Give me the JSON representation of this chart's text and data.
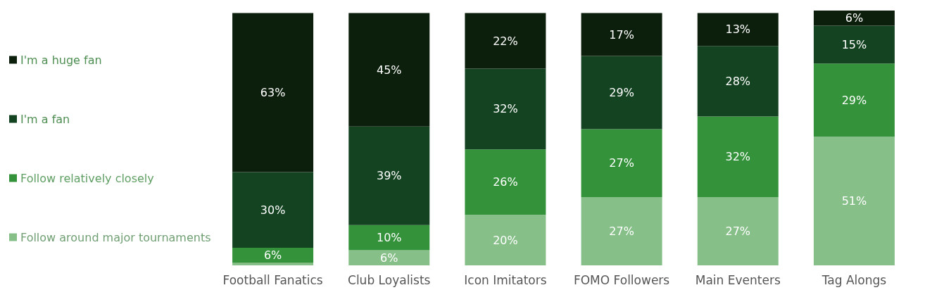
{
  "chart_data": {
    "type": "bar",
    "stacked": true,
    "legend": "left",
    "categories": [
      "Football Fanatics",
      "Club Loyalists",
      "Icon Imitators",
      "FOMO Followers",
      "Main Eventers",
      "Tag Alongs"
    ],
    "series": [
      {
        "name": "Follow around major tournaments",
        "color": "#86bf88",
        "values": [
          1,
          6,
          20,
          27,
          27,
          51
        ],
        "value_labels": [
          null,
          "6%",
          "20%",
          "27%",
          "27%",
          "51%"
        ]
      },
      {
        "name": "Follow relatively closely",
        "color": "#33923a",
        "values": [
          6,
          10,
          26,
          27,
          32,
          29
        ],
        "value_labels": [
          "6%",
          "10%",
          "26%",
          "27%",
          "32%",
          "29%"
        ]
      },
      {
        "name": "I'm a fan",
        "color": "#144321",
        "values": [
          30,
          39,
          32,
          29,
          28,
          15
        ],
        "value_labels": [
          "30%",
          "39%",
          "32%",
          "29%",
          "28%",
          "15%"
        ]
      },
      {
        "name": "I'm a huge fan",
        "color": "#0c1f0c",
        "values": [
          63,
          45,
          22,
          17,
          13,
          6
        ],
        "value_labels": [
          "63%",
          "45%",
          "22%",
          "17%",
          "13%",
          "6%"
        ]
      }
    ]
  }
}
